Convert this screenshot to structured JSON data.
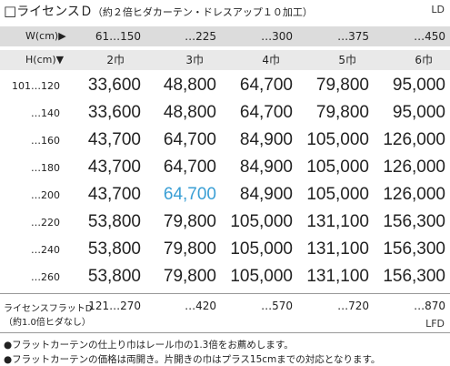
{
  "title": {
    "box": "□",
    "main": "ライセンスＤ",
    "sub": "（約２倍ヒダカーテン・ドレスアップ１０加工）"
  },
  "code_top": "LD",
  "width_header": {
    "label": "W(cm)▶",
    "values": [
      "61…150",
      "…225",
      "…300",
      "…375",
      "…450"
    ]
  },
  "height_header": {
    "label": "H(cm)▼",
    "values": [
      "2巾",
      "3巾",
      "4巾",
      "5巾",
      "6巾"
    ]
  },
  "rows": [
    {
      "label": "101…120",
      "values": [
        "33,600",
        "48,800",
        "64,700",
        "79,800",
        "95,000"
      ]
    },
    {
      "label": "…140",
      "values": [
        "33,600",
        "48,800",
        "64,700",
        "79,800",
        "95,000"
      ]
    },
    {
      "label": "…160",
      "values": [
        "43,700",
        "64,700",
        "84,900",
        "105,000",
        "126,000"
      ]
    },
    {
      "label": "…180",
      "values": [
        "43,700",
        "64,700",
        "84,900",
        "105,000",
        "126,000"
      ]
    },
    {
      "label": "…200",
      "values": [
        "43,700",
        "64,700",
        "84,900",
        "105,000",
        "126,000"
      ]
    },
    {
      "label": "…220",
      "values": [
        "53,800",
        "79,800",
        "105,000",
        "131,100",
        "156,300"
      ]
    },
    {
      "label": "…240",
      "values": [
        "53,800",
        "79,800",
        "105,000",
        "131,100",
        "156,300"
      ]
    },
    {
      "label": "…260",
      "values": [
        "53,800",
        "79,800",
        "105,000",
        "131,100",
        "156,300"
      ]
    }
  ],
  "highlight_color": "#3a9fd5",
  "flat": {
    "label1": "ライセンスフラットD",
    "label2": "（約1.0倍ヒダなし）",
    "values": [
      "121…270",
      "…420",
      "…570",
      "…720",
      "…870"
    ],
    "code": "LFD"
  },
  "notes": [
    "●フラットカーテンの仕上り巾はレール巾の1.3倍をお薦めします。",
    "●フラットカーテンの価格は両開き。片開きの巾はプラス15cmまでの対応となります。"
  ]
}
